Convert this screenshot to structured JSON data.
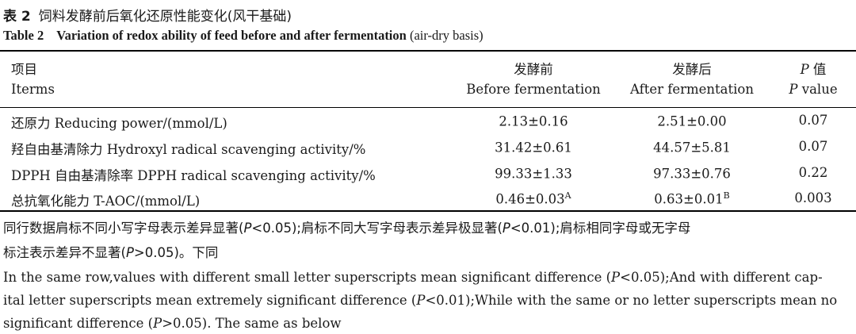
{
  "caption": {
    "zh_number": "表 2",
    "zh_title": "饲料发酵前后氧化还原性能变化(风干基础)",
    "en_number": "Table 2",
    "en_title": "Variation of redox ability of feed before and after fermentation",
    "en_basis": "(air-dry basis)"
  },
  "header": {
    "items_zh": "项目",
    "items_en": "Iterms",
    "before_zh": "发酵前",
    "before_en": "Before fermentation",
    "after_zh": "发酵后",
    "after_en": "After fermentation",
    "p_letter": "P",
    "p_zh": " 值",
    "p_en": " value"
  },
  "rows": [
    {
      "item": "还原力 Reducing power/(mmol/L)",
      "before": "2.13±0.16",
      "before_sup": "",
      "after": "2.51±0.00",
      "after_sup": "",
      "p": "0.07"
    },
    {
      "item": "羟自由基清除力 Hydroxyl radical scavenging activity/%",
      "before": "31.42±0.61",
      "before_sup": "",
      "after": "44.57±5.81",
      "after_sup": "",
      "p": "0.07"
    },
    {
      "item": "DPPH 自由基清除率 DPPH radical scavenging activity/%",
      "before": "99.33±1.33",
      "before_sup": "",
      "after": "97.33±0.76",
      "after_sup": "",
      "p": "0.22"
    },
    {
      "item": "总抗氧化能力 T-AOC/(mmol/L)",
      "before": "0.46±0.03",
      "before_sup": "A",
      "after": "0.63±0.01",
      "after_sup": "B",
      "p": "0.003"
    }
  ],
  "notes": {
    "zh_line1_a": "同行数据肩标不同小写字母表示差异显著(",
    "zh_line1_b": "<0.05);肩标不同大写字母表示差异极显著(",
    "zh_line1_c": "<0.01);肩标相同字母或无字母",
    "zh_line2_a": "标注表示差异不显著(",
    "zh_line2_b": ">0.05)。下同",
    "en_line1_a": "In the same row,values with different small letter superscripts mean significant difference (",
    "en_line1_b": "<0.05);And with different cap-",
    "en_line2_a": "ital letter superscripts mean extremely significant difference (",
    "en_line2_b": "<0.01);While with the same or no letter superscripts mean no",
    "en_line3_a": "significant difference (",
    "en_line3_b": ">0.05). The same as below",
    "p": "P"
  }
}
